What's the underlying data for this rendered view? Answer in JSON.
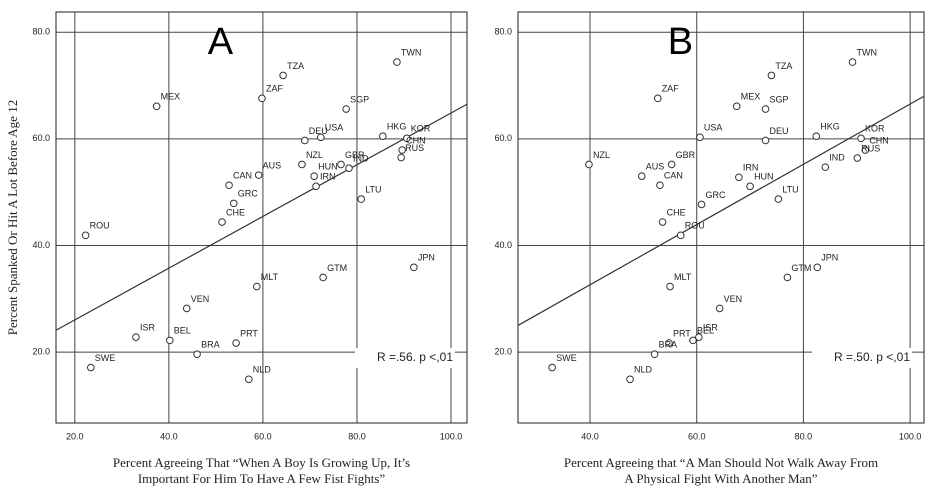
{
  "chart_data": [
    {
      "type": "scatter",
      "panel_label": "A",
      "y_label": "Percent Spanked Or Hit A Lot Before Age 12",
      "x_label": [
        "Percent Agreeing That “When A Boy Is Growing Up, It’s",
        "Important For Him To Have A Few Fist Fights”"
      ],
      "annotation": "R =.56. p <,01",
      "xlim": [
        16.0,
        103.4
      ],
      "ylim": [
        6.7,
        83.8
      ],
      "xticks": [
        {
          "value": 20,
          "label": "20.0"
        },
        {
          "value": 40,
          "label": "40.0"
        },
        {
          "value": 60,
          "label": "60.0"
        },
        {
          "value": 80,
          "label": "80.0"
        },
        {
          "value": 100,
          "label": "100.0"
        }
      ],
      "yticks": [
        {
          "value": 20,
          "label": "20.0"
        },
        {
          "value": 40,
          "label": "40.0"
        },
        {
          "value": 60,
          "label": "60.0"
        },
        {
          "value": 80,
          "label": "80.0"
        }
      ],
      "grid": true,
      "point_labels": [
        "TWN",
        "TZA",
        "ZAF",
        "MEX",
        "SGP",
        "HKG",
        "KOR",
        "USA",
        "DEU",
        "NZL",
        "GBR",
        "HUN",
        "CHN",
        "RUS",
        "IND",
        "IRN",
        "LTU",
        "AUS",
        "CAN",
        "GRC",
        "CHE",
        "ROU",
        "JPN",
        "GTM",
        "MLT",
        "VEN",
        "ISR",
        "BEL",
        "BRA",
        "PRT",
        "SWE",
        "NLD"
      ],
      "x": [
        88.5,
        64.3,
        59.8,
        37.4,
        77.7,
        85.5,
        90.6,
        72.3,
        68.9,
        68.3,
        76.6,
        70.9,
        89.6,
        89.4,
        78.3,
        71.3,
        80.9,
        59.1,
        52.8,
        53.8,
        51.3,
        22.3,
        92.1,
        72.8,
        58.7,
        43.8,
        33.0,
        40.2,
        46.0,
        54.3,
        23.4,
        57.0
      ],
      "y": [
        74.4,
        71.9,
        67.6,
        66.1,
        65.6,
        60.5,
        60.1,
        60.3,
        59.7,
        55.2,
        55.2,
        53.0,
        57.9,
        56.5,
        54.5,
        51.1,
        48.7,
        53.2,
        51.3,
        47.9,
        44.4,
        41.9,
        35.9,
        34.0,
        32.3,
        28.2,
        22.8,
        22.2,
        19.6,
        21.7,
        17.1,
        14.9
      ],
      "fit_line": {
        "x": [
          16.0,
          103.4
        ],
        "y": [
          24.1,
          66.5
        ]
      }
    },
    {
      "type": "scatter",
      "panel_label": "B",
      "x_label": [
        "Percent Agreeing that  “A Man Should Not Walk Away From",
        "A Physical Fight With Another Man”"
      ],
      "annotation": "R =.50. p <,01",
      "xlim": [
        26.5,
        102.6
      ],
      "ylim": [
        6.7,
        83.8
      ],
      "xticks": [
        {
          "value": 40,
          "label": "40.0"
        },
        {
          "value": 60,
          "label": "60.0"
        },
        {
          "value": 80,
          "label": "80.0"
        },
        {
          "value": 100,
          "label": "100.0"
        }
      ],
      "yticks": [
        {
          "value": 20,
          "label": "20.0"
        },
        {
          "value": 40,
          "label": "40.0"
        },
        {
          "value": 60,
          "label": "60.0"
        },
        {
          "value": 80,
          "label": "80.0"
        }
      ],
      "grid": true,
      "point_labels": [
        "TWN",
        "TZA",
        "ZAF",
        "MEX",
        "SGP",
        "USA",
        "DEU",
        "HKG",
        "KOR",
        "CHN",
        "RUS",
        "IND",
        "NZL",
        "GBR",
        "AUS",
        "CAN",
        "IRN",
        "HUN",
        "LTU",
        "GRC",
        "CHE",
        "ROU",
        "JPN",
        "GTM",
        "MLT",
        "VEN",
        "ISR",
        "BEL",
        "PRT",
        "BRA",
        "SWE",
        "NLD"
      ],
      "x": [
        89.2,
        74.0,
        52.7,
        67.5,
        72.9,
        60.6,
        72.9,
        82.4,
        90.8,
        91.6,
        90.1,
        84.1,
        39.8,
        55.3,
        49.7,
        53.1,
        67.9,
        70.0,
        75.3,
        60.9,
        53.6,
        57.0,
        82.6,
        77.0,
        55.0,
        64.3,
        60.4,
        59.3,
        54.8,
        52.1,
        32.9,
        47.5
      ],
      "y": [
        74.4,
        71.9,
        67.6,
        66.1,
        65.6,
        60.3,
        59.7,
        60.5,
        60.1,
        57.9,
        56.4,
        54.7,
        55.2,
        55.2,
        53.0,
        51.3,
        52.8,
        51.1,
        48.7,
        47.7,
        44.4,
        41.9,
        35.9,
        34.0,
        32.3,
        28.2,
        22.8,
        22.2,
        21.7,
        19.6,
        17.1,
        14.9
      ],
      "fit_line": {
        "x": [
          26.5,
          102.6
        ],
        "y": [
          25.0,
          68.0
        ]
      }
    }
  ]
}
